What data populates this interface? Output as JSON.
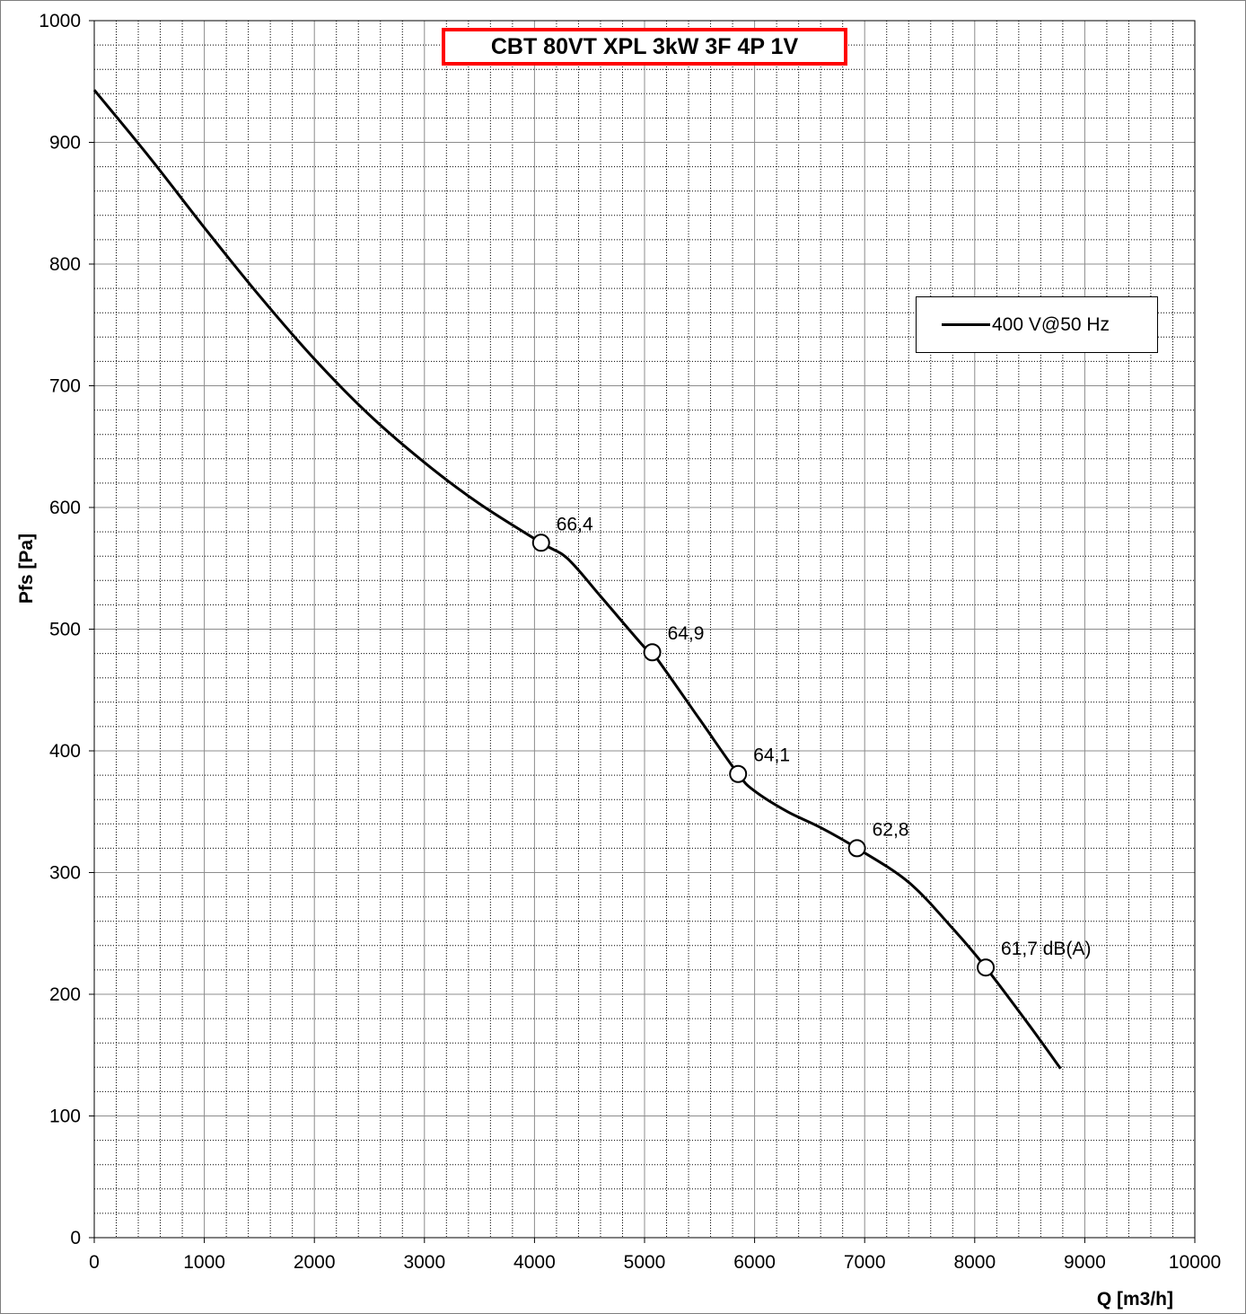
{
  "chart_data": {
    "type": "line",
    "title": "CBT 80VT XPL 3kW 3F 4P 1V",
    "xlabel": "Q [m3/h]",
    "ylabel": "Pfs [Pa]",
    "xlim": [
      0,
      10000
    ],
    "ylim": [
      0,
      1000
    ],
    "x_ticks": [
      0,
      1000,
      2000,
      3000,
      4000,
      5000,
      6000,
      7000,
      8000,
      9000,
      10000
    ],
    "y_ticks": [
      0,
      100,
      200,
      300,
      400,
      500,
      600,
      700,
      800,
      900,
      1000
    ],
    "x_minor_step": 200,
    "y_minor_step": 20,
    "grid": true,
    "legend_position": "top-right",
    "series": [
      {
        "name": "400 V@50 Hz",
        "color": "#000000",
        "x": [
          0,
          500,
          1000,
          1500,
          2000,
          2500,
          3000,
          3500,
          4060,
          4300,
          4600,
          5000,
          5070,
          5500,
          5850,
          6000,
          6300,
          6600,
          6930,
          7400,
          7800,
          8100,
          8500,
          8780
        ],
        "y": [
          943,
          888,
          830,
          774,
          722,
          676,
          637,
          603,
          571,
          558,
          527,
          485,
          481,
          426,
          381,
          367,
          350,
          337,
          320,
          292,
          254,
          222,
          174,
          139
        ]
      }
    ],
    "markers": [
      {
        "x": 4060,
        "y": 571,
        "label": "66,4"
      },
      {
        "x": 5070,
        "y": 481,
        "label": "64,9"
      },
      {
        "x": 5850,
        "y": 381,
        "label": "64,1"
      },
      {
        "x": 6930,
        "y": 320,
        "label": "62,8"
      },
      {
        "x": 8100,
        "y": 222,
        "label": "61,7 dB(A)"
      }
    ]
  }
}
